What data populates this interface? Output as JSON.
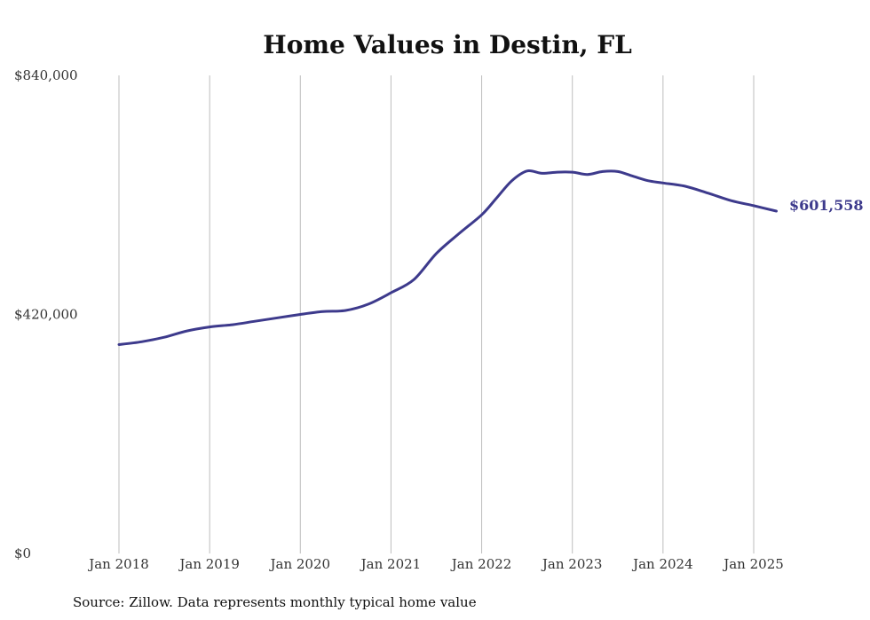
{
  "chart_data": {
    "type": "line",
    "title": "Home Values in Destin, FL",
    "source": "Source: Zillow. Data represents monthly typical home value",
    "ylim": [
      0,
      840000
    ],
    "y_ticks": [
      {
        "value": 0,
        "label": "$0"
      },
      {
        "value": 420000,
        "label": "$420,000"
      },
      {
        "value": 840000,
        "label": "$840,000"
      }
    ],
    "x_range": [
      "2018-01",
      "2025-04"
    ],
    "x_ticks": [
      {
        "date": "2018-01",
        "label": "Jan 2018"
      },
      {
        "date": "2019-01",
        "label": "Jan 2019"
      },
      {
        "date": "2020-01",
        "label": "Jan 2020"
      },
      {
        "date": "2021-01",
        "label": "Jan 2021"
      },
      {
        "date": "2022-01",
        "label": "Jan 2022"
      },
      {
        "date": "2023-01",
        "label": "Jan 2023"
      },
      {
        "date": "2024-01",
        "label": "Jan 2024"
      },
      {
        "date": "2025-01",
        "label": "Jan 2025"
      }
    ],
    "grid": {
      "vertical": true,
      "horizontal": false
    },
    "line_color": "#3d3a8c",
    "end_label": "$601,558",
    "series": [
      {
        "points": [
          [
            "2018-01",
            367000
          ],
          [
            "2018-04",
            372000
          ],
          [
            "2018-07",
            380000
          ],
          [
            "2018-10",
            391000
          ],
          [
            "2019-01",
            398000
          ],
          [
            "2019-04",
            402000
          ],
          [
            "2019-07",
            408000
          ],
          [
            "2019-10",
            414000
          ],
          [
            "2020-01",
            420000
          ],
          [
            "2020-04",
            425000
          ],
          [
            "2020-07",
            427000
          ],
          [
            "2020-10",
            438000
          ],
          [
            "2021-01",
            458000
          ],
          [
            "2021-04",
            481000
          ],
          [
            "2021-07",
            527000
          ],
          [
            "2021-10",
            562000
          ],
          [
            "2022-01",
            595000
          ],
          [
            "2022-03",
            625000
          ],
          [
            "2022-05",
            655000
          ],
          [
            "2022-07",
            672000
          ],
          [
            "2022-09",
            668000
          ],
          [
            "2022-11",
            670000
          ],
          [
            "2023-01",
            670000
          ],
          [
            "2023-03",
            666000
          ],
          [
            "2023-05",
            671000
          ],
          [
            "2023-07",
            671000
          ],
          [
            "2023-09",
            663000
          ],
          [
            "2023-11",
            655000
          ],
          [
            "2024-01",
            651000
          ],
          [
            "2024-04",
            645000
          ],
          [
            "2024-07",
            633000
          ],
          [
            "2024-10",
            620000
          ],
          [
            "2025-01",
            611000
          ],
          [
            "2025-04",
            601558
          ]
        ]
      }
    ]
  }
}
